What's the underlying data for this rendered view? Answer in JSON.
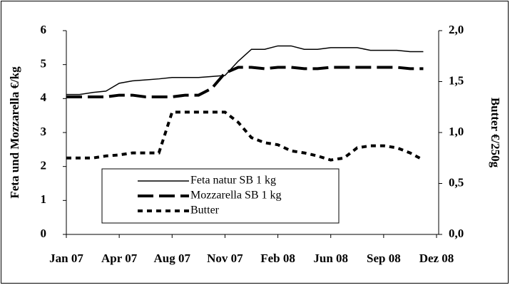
{
  "chart_data": {
    "type": "line",
    "y_label": "Feta und Mozzarella €/kg",
    "y2_label": "Butter €/250g",
    "categories": [
      "Jan 07",
      null,
      null,
      null,
      "Apr 07",
      null,
      null,
      null,
      "Aug 07",
      null,
      null,
      null,
      "Nov 07",
      null,
      null,
      null,
      "Feb 08",
      null,
      null,
      null,
      "Jun 08",
      null,
      null,
      null,
      "Sep 08",
      null,
      null,
      null,
      "Dez 08"
    ],
    "series": [
      {
        "name": "Feta natur SB 1 kg",
        "color": "#000000",
        "dash": "solid",
        "width": 1.5,
        "values": [
          4.12,
          4.12,
          4.18,
          4.22,
          4.45,
          4.52,
          4.55,
          4.58,
          4.62,
          4.62,
          4.62,
          4.65,
          4.68,
          5.1,
          5.45,
          5.45,
          5.55,
          5.55,
          5.45,
          5.45,
          5.5,
          5.5,
          5.5,
          5.42,
          5.42,
          5.42,
          5.38,
          5.38,
          null
        ]
      },
      {
        "name": "Mozzarella SB 1 kg",
        "color": "#000000",
        "dash": "longdash",
        "width": 4,
        "values": [
          4.05,
          4.05,
          4.05,
          4.05,
          4.1,
          4.1,
          4.05,
          4.05,
          4.05,
          4.1,
          4.1,
          4.3,
          4.75,
          4.92,
          4.92,
          4.88,
          4.92,
          4.92,
          4.88,
          4.88,
          4.92,
          4.92,
          4.92,
          4.92,
          4.92,
          4.92,
          4.88,
          4.88,
          null
        ]
      },
      {
        "name": "Butter",
        "color": "#000000",
        "dash": "dot",
        "width": 4,
        "axis": "y2",
        "values": [
          0.75,
          0.75,
          0.75,
          0.77,
          0.78,
          0.8,
          0.8,
          0.8,
          1.2,
          1.2,
          1.2,
          1.2,
          1.2,
          1.1,
          0.95,
          0.9,
          0.88,
          0.82,
          0.8,
          0.77,
          0.73,
          0.75,
          0.85,
          0.87,
          0.87,
          0.85,
          0.8,
          0.73,
          null
        ]
      }
    ],
    "ylim": [
      0,
      6
    ],
    "yticks": [
      0,
      1,
      2,
      3,
      4,
      5,
      6
    ],
    "y2lim": [
      0,
      2
    ],
    "y2ticks": [
      {
        "value": 0,
        "label": "0,0"
      },
      {
        "value": 0.5,
        "label": "0,5"
      },
      {
        "value": 1,
        "label": "1,0"
      },
      {
        "value": 1.5,
        "label": "1,5"
      },
      {
        "value": 2,
        "label": "2,0"
      }
    ]
  }
}
